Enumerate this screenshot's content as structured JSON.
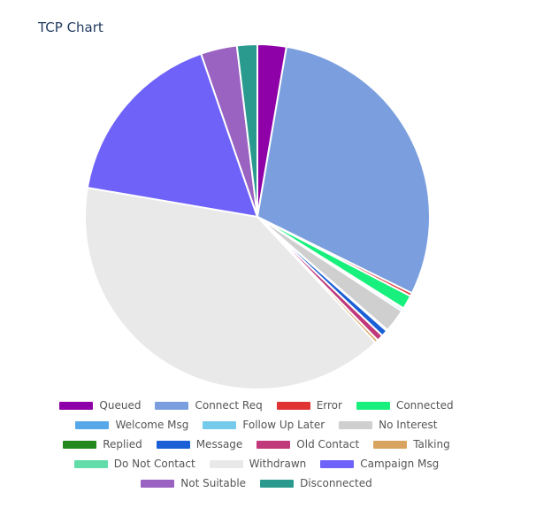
{
  "title": "TCP Chart",
  "chart_data": {
    "type": "pie",
    "title": "TCP Chart",
    "legend_position": "bottom",
    "slices": [
      {
        "label": "Queued",
        "value": 2.7,
        "color": "#8e00a8"
      },
      {
        "label": "Connect Req",
        "value": 29.6,
        "color": "#7b9fde"
      },
      {
        "label": "Error",
        "value": 0.3,
        "color": "#e03434"
      },
      {
        "label": "Connected",
        "value": 1.3,
        "color": "#17f07c"
      },
      {
        "label": "Welcome Msg",
        "value": 0.1,
        "color": "#56a8e8"
      },
      {
        "label": "Follow Up Later",
        "value": 0.2,
        "color": "#74cbec"
      },
      {
        "label": "No Interest",
        "value": 2.2,
        "color": "#cfcfcf"
      },
      {
        "label": "Replied",
        "value": 0.1,
        "color": "#23891f"
      },
      {
        "label": "Message",
        "value": 0.6,
        "color": "#1a5fd6"
      },
      {
        "label": "Old Contact",
        "value": 0.6,
        "color": "#c0397a"
      },
      {
        "label": "Talking",
        "value": 0.3,
        "color": "#d9a460"
      },
      {
        "label": "Do Not Contact",
        "value": 0.0,
        "color": "#62dca8"
      },
      {
        "label": "Withdrawn",
        "value": 39.7,
        "color": "#e9e9e9"
      },
      {
        "label": "Campaign Msg",
        "value": 17.0,
        "color": "#6f62f9"
      },
      {
        "label": "Not Suitable",
        "value": 3.4,
        "color": "#9a62c1"
      },
      {
        "label": "Disconnected",
        "value": 1.9,
        "color": "#2a9a8f"
      }
    ]
  }
}
